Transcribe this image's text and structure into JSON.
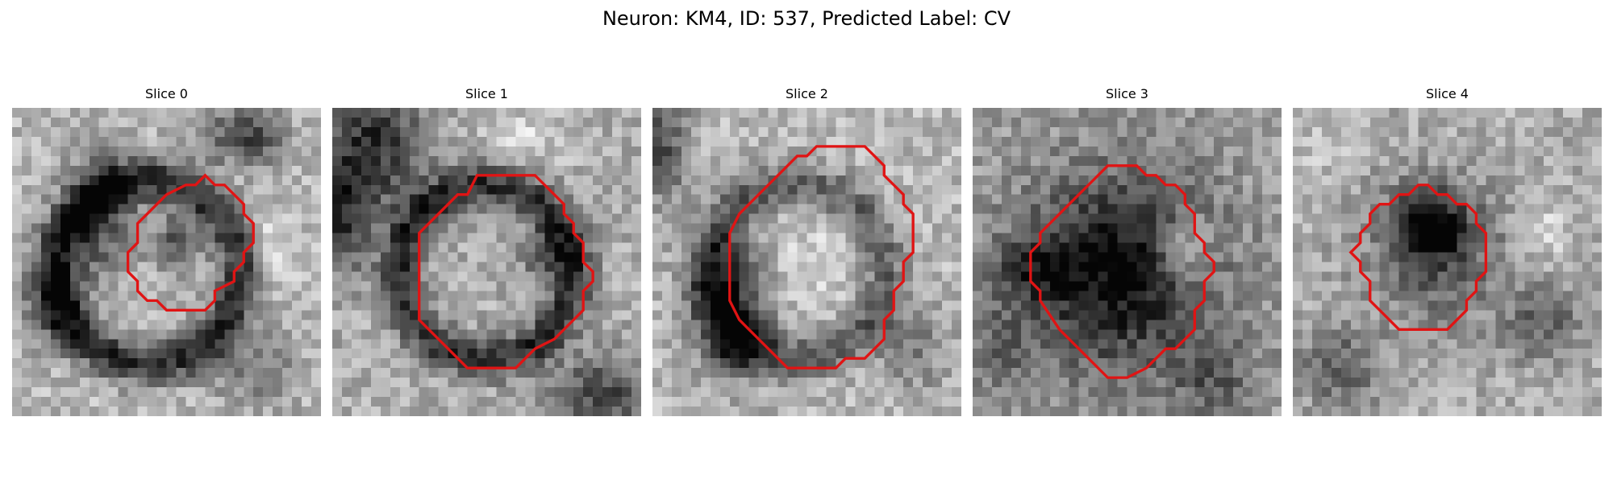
{
  "figure": {
    "suptitle": "Neuron: KM4, ID: 537, Predicted Label: CV",
    "outline_color": "#e01414",
    "colormap": "gray",
    "slices": [
      {
        "title": "Slice 0"
      },
      {
        "title": "Slice 1"
      },
      {
        "title": "Slice 2"
      },
      {
        "title": "Slice 3"
      },
      {
        "title": "Slice 4"
      }
    ]
  }
}
